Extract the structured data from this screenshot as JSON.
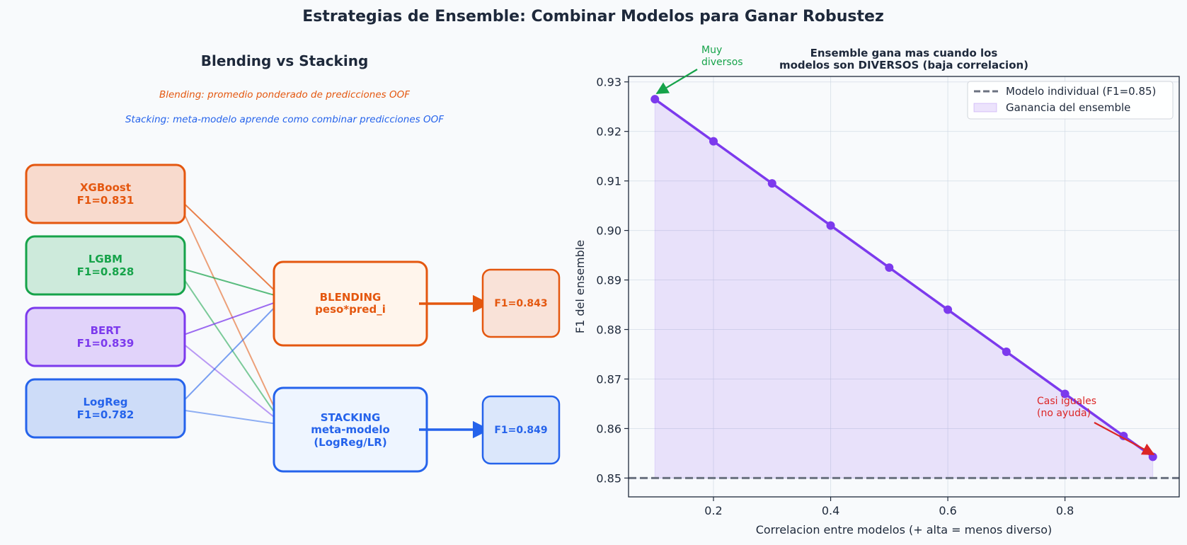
{
  "title": "Estrategias de Ensemble: Combinar Modelos para Ganar Robustez",
  "diagram": {
    "title": "Blending vs Stacking",
    "blending_note": "Blending: promedio ponderado de predicciones OOF",
    "stacking_note": "Stacking: meta-modelo aprende como combinar predicciones OOF",
    "models": [
      {
        "name": "XGBoost",
        "score": "F1=0.831",
        "color": "#e4570f",
        "fill": "#f8dacd"
      },
      {
        "name": "LGBM",
        "score": "F1=0.828",
        "color": "#16a34a",
        "fill": "#cdeadb"
      },
      {
        "name": "BERT",
        "score": "F1=0.839",
        "color": "#7c3aed",
        "fill": "#e1d3fa"
      },
      {
        "name": "LogReg",
        "score": "F1=0.782",
        "color": "#2563eb",
        "fill": "#cddcf8"
      }
    ],
    "blending": {
      "line1": "BLENDING",
      "line2": "peso*pred_i",
      "result": "F1=0.843",
      "color": "#e4570f",
      "fill": "#fff5ec",
      "result_fill": "#f9e2d8"
    },
    "stacking": {
      "line1": "STACKING",
      "line2": "meta-modelo",
      "line3": "(LogReg/LR)",
      "result": "F1=0.849",
      "color": "#2563eb",
      "fill": "#eef5ff",
      "result_fill": "#dbe7fb"
    }
  },
  "chart_data": {
    "type": "line",
    "title_line1": "Ensemble gana mas cuando los",
    "title_line2": "modelos son DIVERSOS (baja correlacion)",
    "xlabel": "Correlacion entre modelos (+ alta = menos diverso)",
    "ylabel": "F1 del ensemble",
    "xlim": [
      0.055,
      0.995
    ],
    "ylim": [
      0.8462,
      0.9311
    ],
    "xticks": [
      0.2,
      0.4,
      0.6,
      0.8
    ],
    "yticks": [
      0.85,
      0.86,
      0.87,
      0.88,
      0.89,
      0.9,
      0.91,
      0.92,
      0.93
    ],
    "ytick_labels": [
      "0.85",
      "0.86",
      "0.87",
      "0.88",
      "0.89",
      "0.90",
      "0.91",
      "0.92",
      "0.93"
    ],
    "x": [
      0.1,
      0.2,
      0.3,
      0.4,
      0.5,
      0.6,
      0.7,
      0.8,
      0.9,
      0.95
    ],
    "y": [
      0.9265,
      0.918,
      0.9095,
      0.901,
      0.8925,
      0.884,
      0.8755,
      0.867,
      0.8585,
      0.8543
    ],
    "baseline": 0.85,
    "legend": {
      "baseline": "Modelo individual (F1=0.85)",
      "fill": "Ganancia del ensemble",
      "position": "top-right"
    },
    "grid": true,
    "line_color": "#7c3aed",
    "annotations": [
      {
        "line1": "Muy",
        "line2": "diversos",
        "color": "#16a34a",
        "x": 0.1,
        "y": 0.9265
      },
      {
        "line1": "Casi iguales",
        "line2": "(no ayuda)",
        "color": "#dc2626",
        "x": 0.95,
        "y": 0.8543
      }
    ]
  }
}
